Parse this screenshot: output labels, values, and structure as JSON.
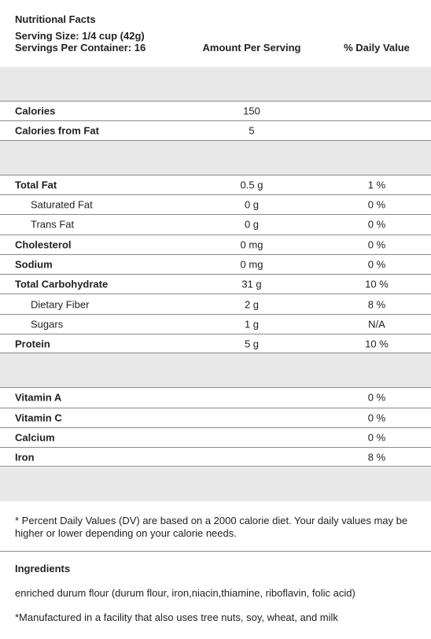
{
  "header": {
    "title": "Nutritional Facts",
    "serving_size": "Serving Size: 1/4 cup (42g)",
    "servings_per_container": "Servings Per Container: 16",
    "column_amount": "Amount Per Serving",
    "column_daily_value": "% Daily Value"
  },
  "sections": [
    {
      "rows": [
        {
          "label": "Calories",
          "amount": "150"
        },
        {
          "label": "Calories from Fat",
          "amount": "5"
        }
      ]
    },
    {
      "rows": [
        {
          "label": "Total Fat",
          "amount": "0.5 g",
          "daily_value": "1 %"
        },
        {
          "label": "Saturated Fat",
          "amount": "0 g",
          "daily_value": "0 %",
          "indent": true
        },
        {
          "label": "Trans Fat",
          "amount": "0 g",
          "daily_value": "0 %",
          "indent": true
        },
        {
          "label": "Cholesterol",
          "amount": "0 mg",
          "daily_value": "0 %"
        },
        {
          "label": "Sodium",
          "amount": "0 mg",
          "daily_value": "0 %"
        },
        {
          "label": "Total Carbohydrate",
          "amount": "31 g",
          "daily_value": "10 %"
        },
        {
          "label": "Dietary Fiber",
          "amount": "2 g",
          "daily_value": "8 %",
          "indent": true
        },
        {
          "label": "Sugars",
          "amount": "1 g",
          "daily_value": "N/A",
          "indent": true
        },
        {
          "label": "Protein",
          "amount": "5 g",
          "daily_value": "10 %"
        }
      ]
    },
    {
      "rows": [
        {
          "label": "Vitamin A",
          "daily_value": "0 %"
        },
        {
          "label": "Vitamin C",
          "daily_value": "0 %"
        },
        {
          "label": "Calcium",
          "daily_value": "0 %"
        },
        {
          "label": "Iron",
          "daily_value": "8 %"
        }
      ]
    }
  ],
  "footnote": "* Percent Daily Values (DV) are based on a 2000 calorie diet. Your daily values may be higher or lower depending on your calorie needs.",
  "ingredients": {
    "heading": "Ingredients",
    "text": "enriched durum flour (durum flour, iron,niacin,thiamine, riboflavin, folic acid)",
    "note": "*Manufactured in a facility that also uses tree nuts, soy, wheat, and milk"
  }
}
